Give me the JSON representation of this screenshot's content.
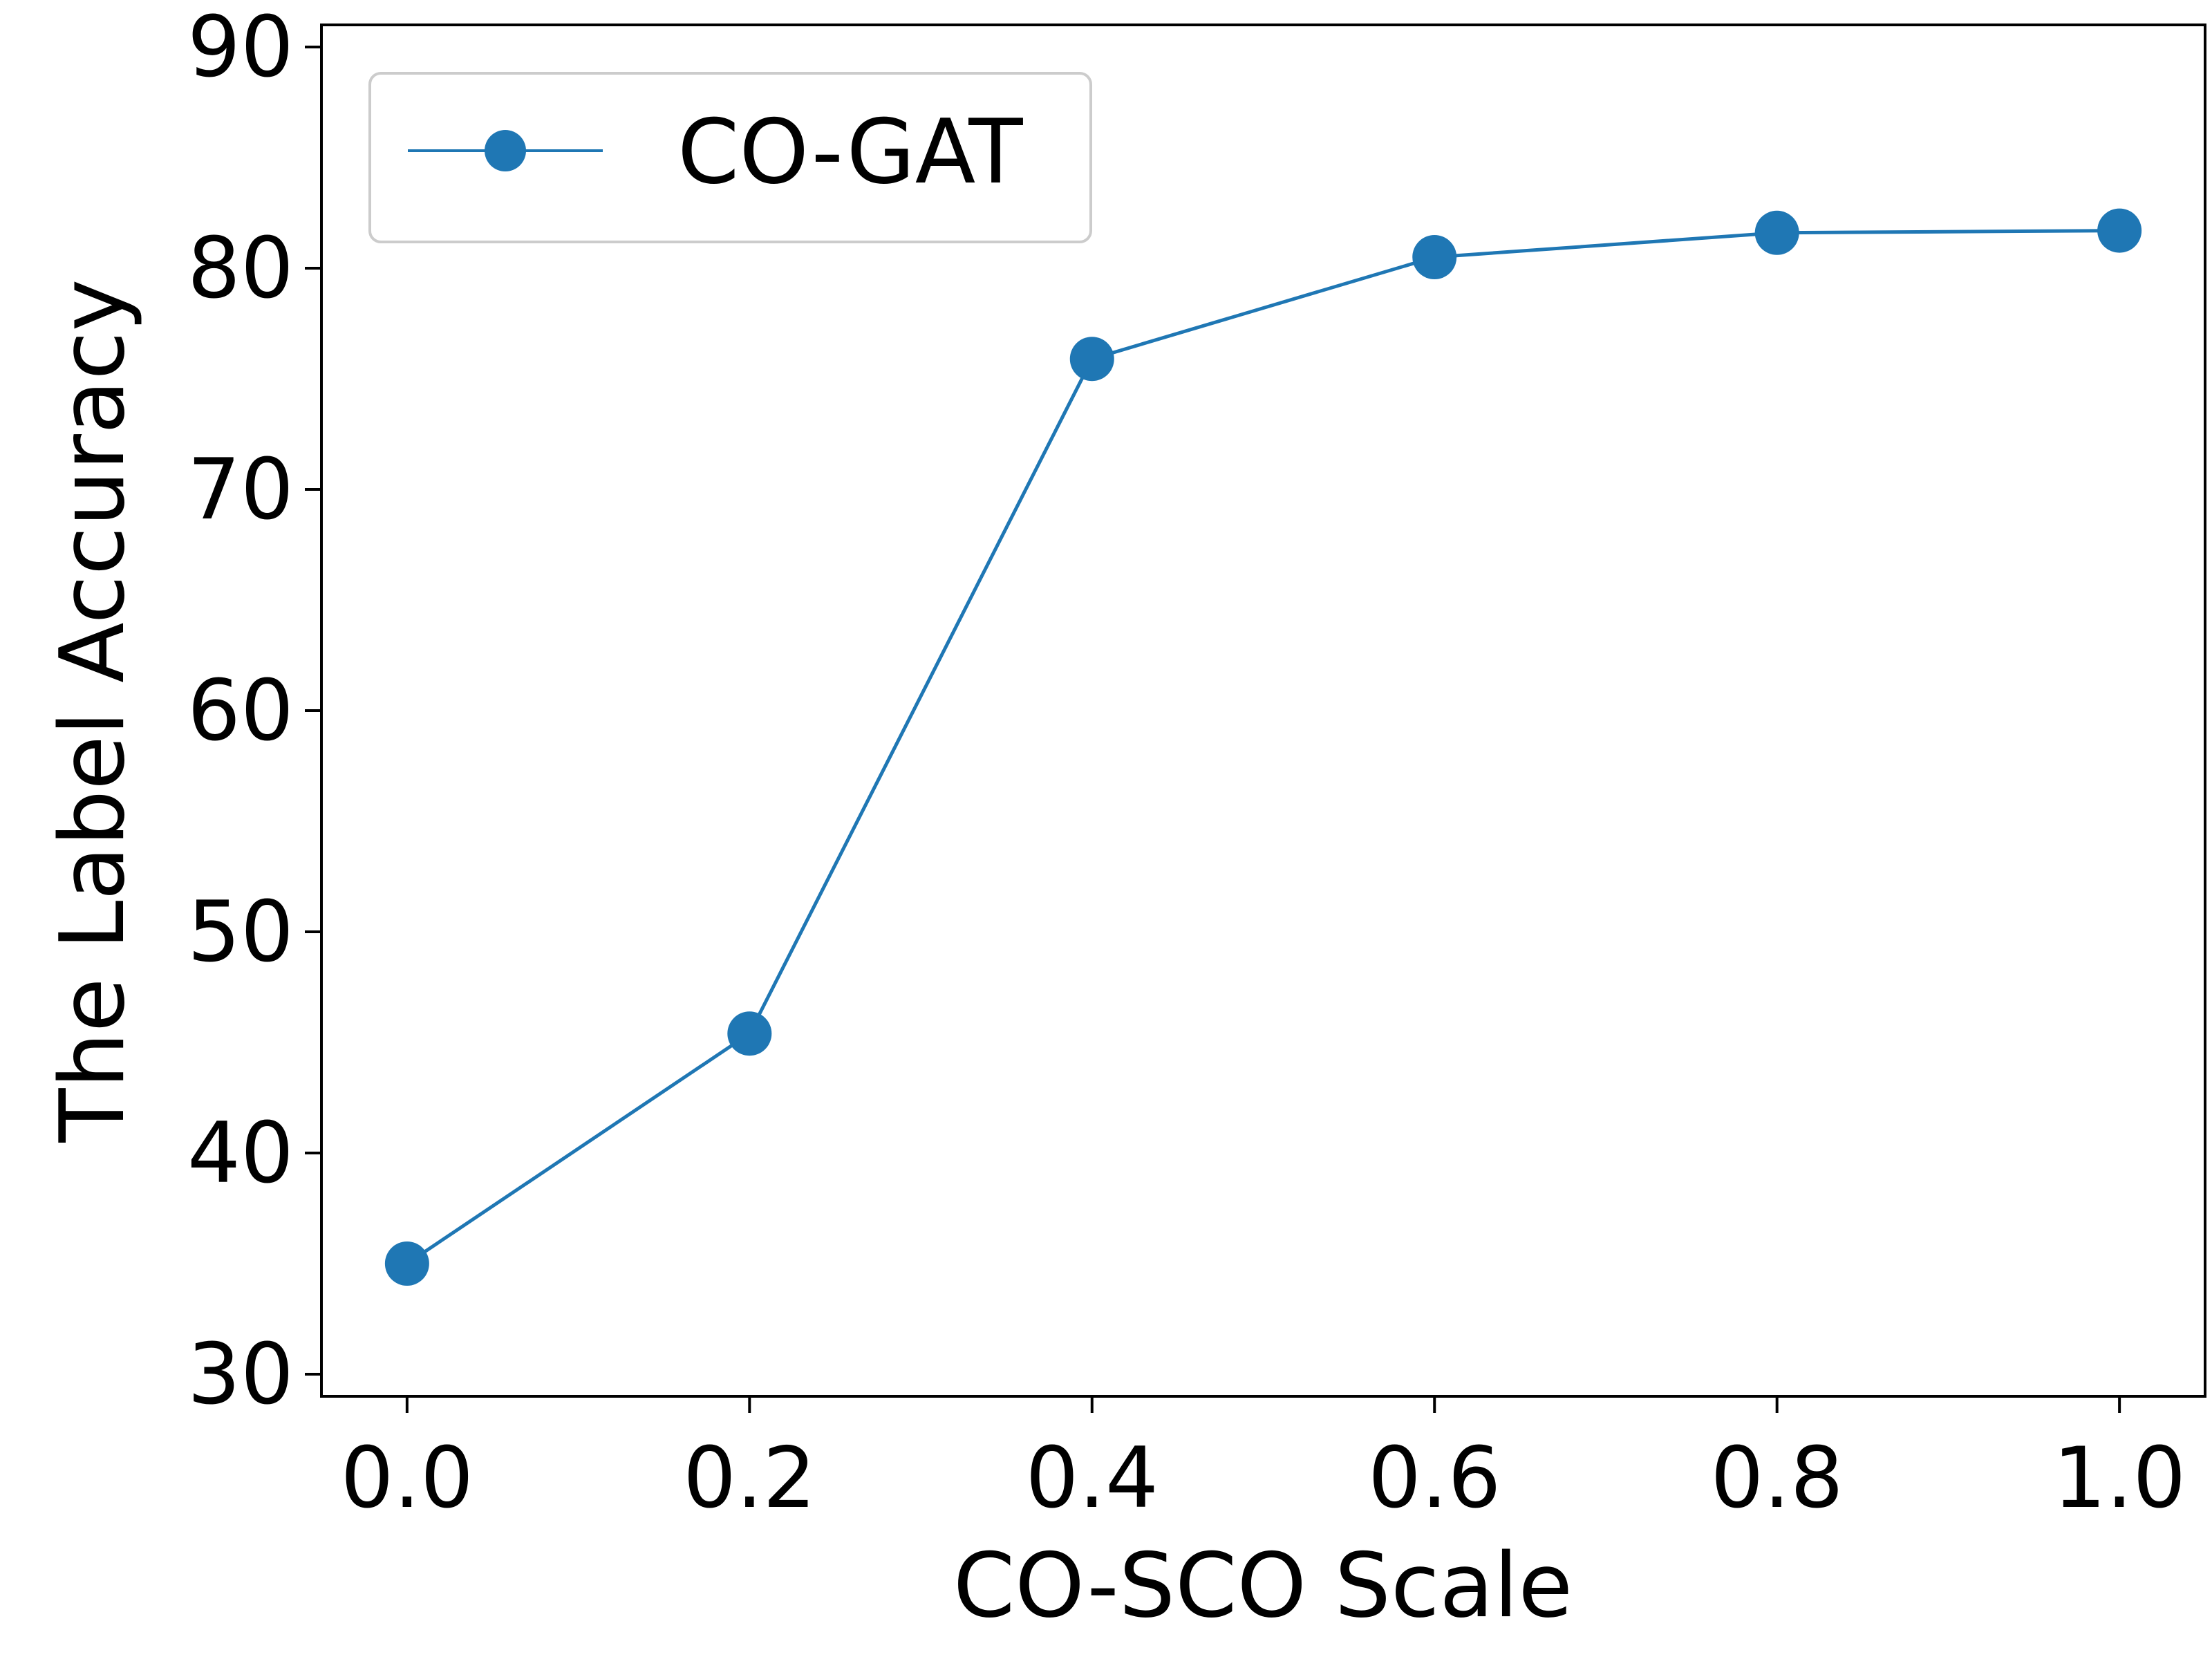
{
  "chart_data": {
    "type": "line",
    "title": "",
    "xlabel": "CO-SCO Scale",
    "ylabel": "The Label Accuracy",
    "xlim": [
      -0.05,
      1.05
    ],
    "ylim": [
      29,
      91
    ],
    "xticks": [
      0.0,
      0.2,
      0.4,
      0.6,
      0.8,
      1.0
    ],
    "xtick_labels": [
      "0.0",
      "0.2",
      "0.4",
      "0.6",
      "0.8",
      "1.0"
    ],
    "yticks": [
      30,
      40,
      50,
      60,
      70,
      80,
      90
    ],
    "ytick_labels": [
      "30",
      "40",
      "50",
      "60",
      "70",
      "80",
      "90"
    ],
    "grid": false,
    "legend_position": "top-left",
    "series": [
      {
        "name": "CO-GAT",
        "color": "#1f77b4",
        "marker": "circle",
        "x": [
          0.0,
          0.2,
          0.4,
          0.6,
          0.8,
          1.0
        ],
        "y": [
          35.0,
          45.4,
          75.9,
          80.5,
          81.6,
          81.7
        ]
      }
    ]
  }
}
